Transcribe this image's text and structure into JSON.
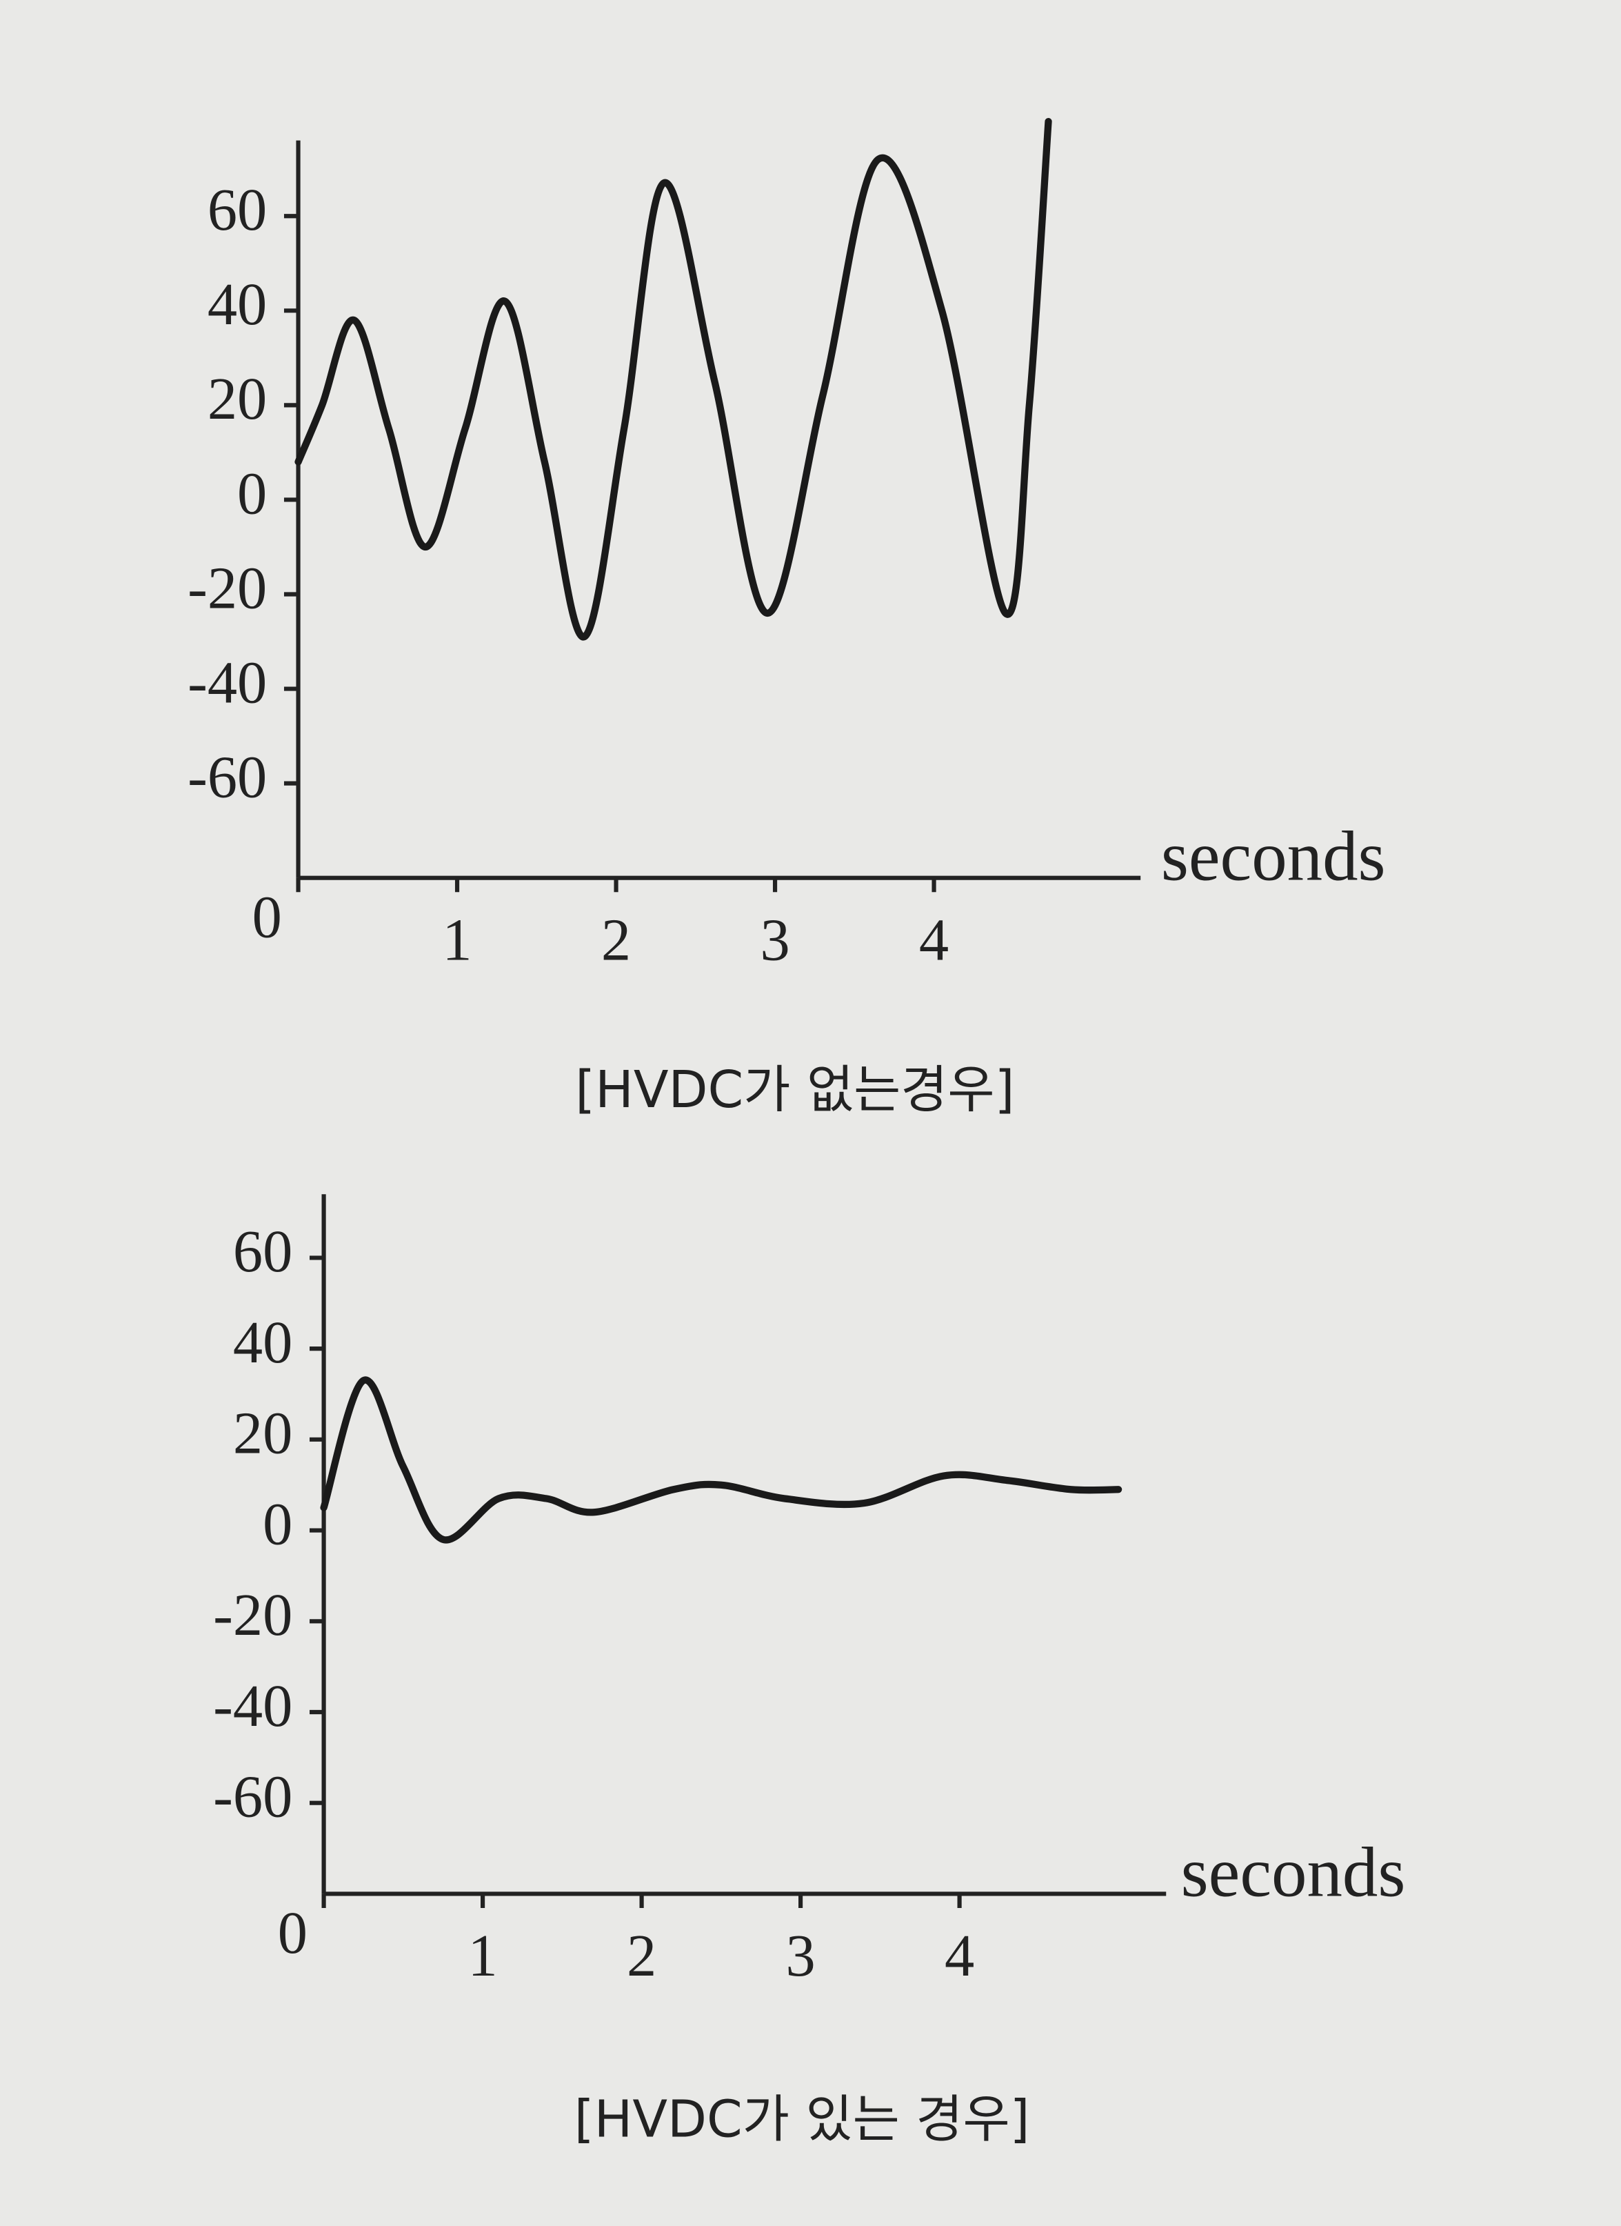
{
  "chart_data": [
    {
      "type": "line",
      "xlabel": "seconds",
      "caption": "[HVDC가 없는경우]",
      "x": [
        0,
        0.15,
        0.35,
        0.57,
        0.8,
        1.05,
        1.3,
        1.55,
        1.8,
        2.05,
        2.3,
        2.62,
        2.95,
        3.3,
        3.65,
        4.05,
        4.45,
        4.6,
        4.72
      ],
      "values": [
        8,
        20,
        38,
        15,
        -10,
        15,
        42,
        8,
        -29,
        15,
        67,
        25,
        -24,
        22,
        72,
        40,
        -24,
        20,
        80
      ],
      "color": "#1a1a1a",
      "xlim": [
        0,
        5.3
      ],
      "xticks": [
        0,
        1,
        2,
        3,
        4
      ],
      "ylim": [
        -80,
        76
      ],
      "yticks": [
        60,
        40,
        20,
        0,
        -20,
        -40,
        -60
      ]
    },
    {
      "type": "line",
      "xlabel": "seconds",
      "caption": "[HVDC가 있는 경우]",
      "x": [
        0,
        0.25,
        0.5,
        0.75,
        1.1,
        1.4,
        1.7,
        2.2,
        2.5,
        2.9,
        3.4,
        3.9,
        4.3,
        4.7,
        5.0
      ],
      "values": [
        5,
        33,
        14,
        -2,
        7,
        7,
        4,
        9,
        10,
        7,
        6,
        12,
        11,
        9,
        9
      ],
      "color": "#1a1a1a",
      "xlim": [
        0,
        5.3
      ],
      "xticks": [
        0,
        1,
        2,
        3,
        4
      ],
      "ylim": [
        -80,
        74
      ],
      "yticks": [
        60,
        40,
        20,
        0,
        -20,
        -40,
        -60
      ]
    }
  ]
}
